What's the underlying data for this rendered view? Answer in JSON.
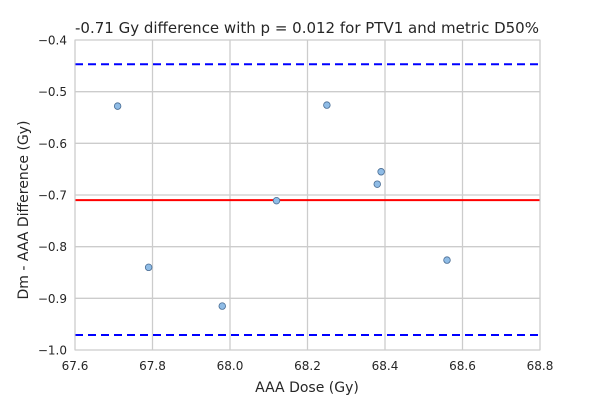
{
  "chart_data": {
    "type": "scatter",
    "title": "-0.71 Gy difference with p = 0.012 for PTV1 and metric D50%",
    "xlabel": "AAA Dose (Gy)",
    "ylabel": "Dm - AAA Difference (Gy)",
    "xlim": [
      67.6,
      68.8
    ],
    "ylim": [
      -1.0,
      -0.4
    ],
    "xticks": [
      "67.6",
      "67.8",
      "68.0",
      "68.2",
      "68.4",
      "68.6",
      "68.8"
    ],
    "yticks": [
      "−0.4",
      "−0.5",
      "−0.6",
      "−0.7",
      "−0.8",
      "−0.9",
      "−1.0"
    ],
    "grid": true,
    "points": [
      {
        "x": 67.71,
        "y": -0.528
      },
      {
        "x": 67.79,
        "y": -0.84
      },
      {
        "x": 67.98,
        "y": -0.915
      },
      {
        "x": 68.12,
        "y": -0.711
      },
      {
        "x": 68.25,
        "y": -0.526
      },
      {
        "x": 68.38,
        "y": -0.679
      },
      {
        "x": 68.39,
        "y": -0.655
      },
      {
        "x": 68.56,
        "y": -0.826
      }
    ],
    "mean_line": -0.71,
    "upper_limit": -0.447,
    "lower_limit": -0.971,
    "colors": {
      "points": "#8fbce6",
      "point_edge": "#4a6d94",
      "mean": "#ff0000",
      "limits": "#0000ff",
      "grid": "#cccccc"
    }
  }
}
